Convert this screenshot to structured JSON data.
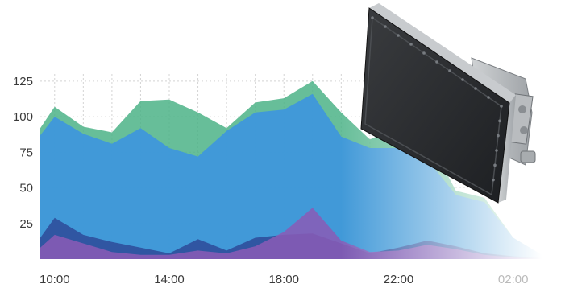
{
  "chart_data": {
    "type": "area",
    "stacked": false,
    "x": [
      9.5,
      10,
      11,
      12,
      13,
      14,
      15,
      16,
      17,
      18,
      19,
      20,
      21,
      22,
      23,
      24,
      25,
      26,
      27
    ],
    "x_ticks": [
      10,
      14,
      18,
      22,
      26
    ],
    "x_tick_labels": [
      "10:00",
      "14:00",
      "18:00",
      "22:00",
      "02:00"
    ],
    "y_ticks": [
      25,
      50,
      75,
      100,
      125
    ],
    "ylim": [
      0,
      130
    ],
    "xlim": [
      9.5,
      27.5
    ],
    "grid": true,
    "title": "",
    "xlabel": "",
    "ylabel": "",
    "colors": {
      "green": "#4cb387",
      "blue": "#3e96dd",
      "navy": "#2f4f9c",
      "purple": "#8b5bb6"
    },
    "series": [
      {
        "color_key": "green",
        "values": [
          92,
          107,
          93,
          89,
          111,
          112,
          103,
          92,
          110,
          113,
          125,
          103,
          84,
          93,
          86,
          48,
          43,
          15,
          3
        ]
      },
      {
        "color_key": "blue",
        "values": [
          87,
          100,
          88,
          81,
          92,
          78,
          72,
          90,
          103,
          105,
          116,
          86,
          78,
          78,
          70,
          45,
          40,
          15,
          3
        ]
      },
      {
        "color_key": "navy",
        "values": [
          15,
          29,
          17,
          12,
          8,
          4,
          14,
          6,
          15,
          17,
          18,
          11,
          4,
          8,
          13,
          9,
          4,
          2,
          1
        ]
      },
      {
        "color_key": "purple",
        "values": [
          8,
          17,
          11,
          5,
          3,
          3,
          6,
          4,
          9,
          19,
          36,
          13,
          5,
          6,
          10,
          7,
          3,
          1,
          0
        ]
      }
    ],
    "fade_to_white_after_x": 20,
    "fade_full_at_x": 27
  },
  "product_photo": {
    "icon": "industrial-enclosure-device-icon"
  }
}
